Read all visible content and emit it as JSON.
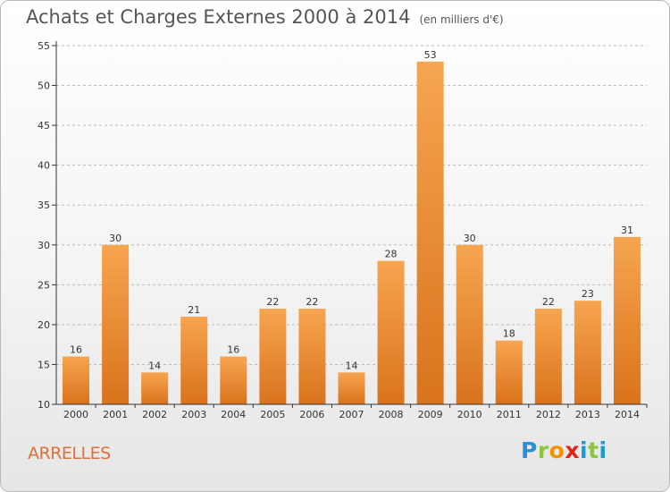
{
  "title": "Achats et Charges Externes 2000 à 2014",
  "subtitle": "(en milliers d'€)",
  "location": "ARRELLES",
  "brand": {
    "parts": [
      "P",
      "r",
      "o",
      "x",
      "i",
      "t",
      "i"
    ]
  },
  "colors": {
    "bar_top": "#f7a54f",
    "bar_bottom": "#d9731c",
    "axis": "#333333",
    "grid": "#bbbbbb",
    "title": "#555555",
    "location": "#e0703a"
  },
  "chart_data": {
    "type": "bar",
    "categories": [
      "2000",
      "2001",
      "2002",
      "2003",
      "2004",
      "2005",
      "2006",
      "2007",
      "2008",
      "2009",
      "2010",
      "2011",
      "2012",
      "2013",
      "2014"
    ],
    "values": [
      16,
      30,
      14,
      21,
      16,
      22,
      22,
      14,
      28,
      53,
      30,
      18,
      22,
      23,
      31
    ],
    "ylim": [
      10,
      55
    ],
    "yticks": [
      10,
      15,
      20,
      25,
      30,
      35,
      40,
      45,
      50,
      55
    ],
    "grid": "horizontal dashed",
    "title": "Achats et Charges Externes 2000 à 2014",
    "xlabel": "",
    "ylabel": ""
  }
}
